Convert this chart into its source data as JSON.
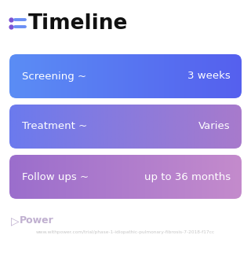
{
  "title": "Timeline",
  "title_icon_color_dot": "#7B52D3",
  "title_icon_color_line": "#6B8FF5",
  "background_color": "#ffffff",
  "rows": [
    {
      "label": "Screening ~",
      "value": "3 weeks",
      "color_left": "#5B8EF5",
      "color_right": "#5B6EF0"
    },
    {
      "label": "Treatment ~",
      "value": "Varies",
      "color_left": "#6B7EF0",
      "color_right": "#A07ACC"
    },
    {
      "label": "Follow ups ~",
      "value": "up to 36 months",
      "color_left": "#9B6ECC",
      "color_right": "#C08ACA"
    }
  ],
  "footer_brand": "Power",
  "footer_url": "www.withpower.com/trial/phase-1-idiopathic-pulmonary-fibrosis-7-2018-f17cc",
  "font_color_white": "#ffffff",
  "font_color_gray": "#aaaaaa",
  "font_color_black": "#111111"
}
